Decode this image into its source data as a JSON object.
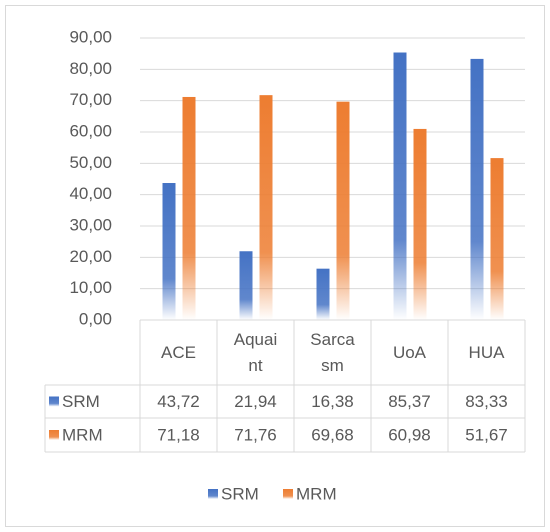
{
  "chart_data": {
    "type": "bar",
    "categories": [
      "ACE",
      "Aquaint",
      "Sarcasm",
      "UoA",
      "HUA"
    ],
    "series": [
      {
        "name": "SRM",
        "color": "#4472c4",
        "values": [
          43.72,
          21.94,
          16.38,
          85.37,
          83.33
        ],
        "value_labels": [
          "43,72",
          "21,94",
          "16,38",
          "85,37",
          "83,33"
        ]
      },
      {
        "name": "MRM",
        "color": "#ed7d31",
        "values": [
          71.18,
          71.76,
          69.68,
          60.98,
          51.67
        ],
        "value_labels": [
          "71,18",
          "71,76",
          "69,68",
          "60,98",
          "51,67"
        ]
      }
    ],
    "ylim": [
      0,
      90
    ],
    "yticks": [
      {
        "value": 0,
        "label": "0,00"
      },
      {
        "value": 10,
        "label": "10,00"
      },
      {
        "value": 20,
        "label": "20,00"
      },
      {
        "value": 30,
        "label": "30,00"
      },
      {
        "value": 40,
        "label": "40,00"
      },
      {
        "value": 50,
        "label": "50,00"
      },
      {
        "value": 60,
        "label": "60,00"
      },
      {
        "value": 70,
        "label": "70,00"
      },
      {
        "value": 80,
        "label": "80,00"
      },
      {
        "value": 90,
        "label": "90,00"
      }
    ],
    "grid": true,
    "legend": "bottom"
  }
}
